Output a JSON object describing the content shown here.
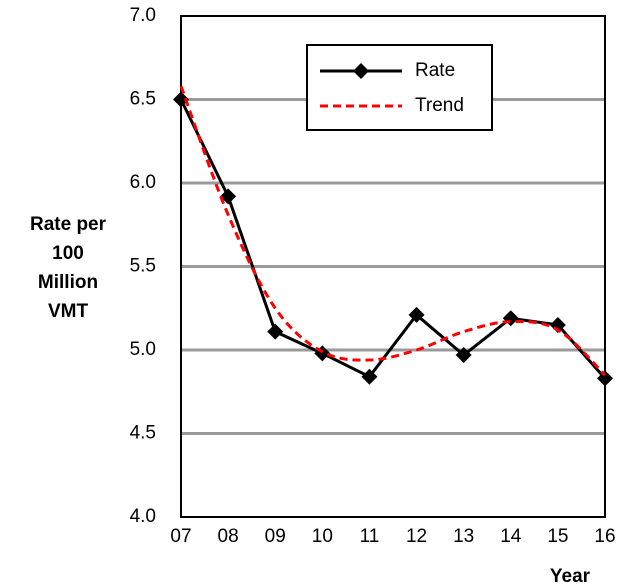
{
  "chart_data": {
    "type": "line",
    "ylabel": [
      "Rate per",
      "100",
      "Million",
      "VMT"
    ],
    "xlabel": "Year",
    "categories": [
      "07",
      "08",
      "09",
      "10",
      "11",
      "12",
      "13",
      "14",
      "15",
      "16"
    ],
    "series": [
      {
        "name": "Rate",
        "color": "#000000",
        "values": [
          6.5,
          5.92,
          5.11,
          4.98,
          4.84,
          5.21,
          4.97,
          5.19,
          5.15,
          4.83
        ]
      },
      {
        "name": "Trend",
        "color": "#ff0000",
        "dashed": true,
        "values": [
          6.58,
          5.81,
          5.25,
          4.99,
          4.94,
          5.0,
          5.11,
          5.17,
          5.12,
          4.85
        ]
      }
    ],
    "ylim": [
      4.0,
      7.0
    ],
    "yticks": [
      {
        "value": 4.0,
        "label": "4.0"
      },
      {
        "value": 4.5,
        "label": "4.5"
      },
      {
        "value": 5.0,
        "label": "5.0"
      },
      {
        "value": 5.5,
        "label": "5.5"
      },
      {
        "value": 6.0,
        "label": "6.0"
      },
      {
        "value": 6.5,
        "label": "6.5"
      },
      {
        "value": 7.0,
        "label": "7.0"
      }
    ],
    "grid": true
  }
}
